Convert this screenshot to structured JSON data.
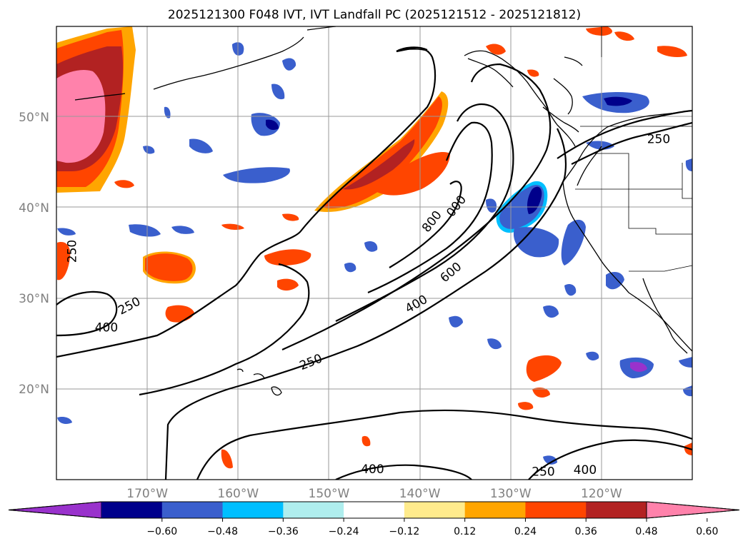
{
  "title": "2025121300 F048 IVT, IVT Landfall PC (2025121512 - 2025121812)",
  "lat_labels": [
    {
      "text": "50°N",
      "lat": 50
    },
    {
      "text": "40°N",
      "lat": 40
    },
    {
      "text": "30°N",
      "lat": 30
    },
    {
      "text": "20°N",
      "lat": 20
    }
  ],
  "lon_labels": [
    {
      "text": "170°W",
      "lon": -170
    },
    {
      "text": "160°W",
      "lon": -160
    },
    {
      "text": "150°W",
      "lon": -150
    },
    {
      "text": "140°W",
      "lon": -140
    },
    {
      "text": "130°W",
      "lon": -130
    },
    {
      "text": "120°W",
      "lon": -120
    }
  ],
  "colorbar": {
    "colors": [
      "#9932cc",
      "#00008b",
      "#3a5fcd",
      "#00bfff",
      "#afeeee",
      "#ffffff",
      "#ffeb8c",
      "#ffa500",
      "#ff4500",
      "#b22222",
      "#ff82ab"
    ],
    "tick_labels": [
      "−0.60",
      "−0.48",
      "−0.36",
      "−0.24",
      "−0.12",
      "0.12",
      "0.24",
      "0.36",
      "0.48",
      "0.60"
    ]
  },
  "contour_labels": [
    {
      "text": "250",
      "lon": -178.3,
      "lat": 35.2,
      "rotation": -90
    },
    {
      "text": "250",
      "lon": -172.0,
      "lat": 29.2,
      "rotation": -28
    },
    {
      "text": "400",
      "lon": -174.5,
      "lat": 26.8,
      "rotation": 0
    },
    {
      "text": "250",
      "lon": -152.0,
      "lat": 23.0,
      "rotation": -22
    },
    {
      "text": "400",
      "lon": -140.4,
      "lat": 29.4,
      "rotation": -30
    },
    {
      "text": "600",
      "lon": -136.6,
      "lat": 32.9,
      "rotation": -40
    },
    {
      "text": "800",
      "lon": -138.7,
      "lat": 38.5,
      "rotation": -52
    },
    {
      "text": "000",
      "lon": -136.0,
      "lat": 40.2,
      "rotation": -52
    },
    {
      "text": "250",
      "lon": -113.7,
      "lat": 47.6,
      "rotation": 0
    },
    {
      "text": "400",
      "lon": -145.2,
      "lat": 11.2,
      "rotation": 0
    },
    {
      "text": "250",
      "lon": -126.4,
      "lat": 10.9,
      "rotation": 0
    },
    {
      "text": "400",
      "lon": -121.8,
      "lat": 11.1,
      "rotation": 0
    }
  ]
}
